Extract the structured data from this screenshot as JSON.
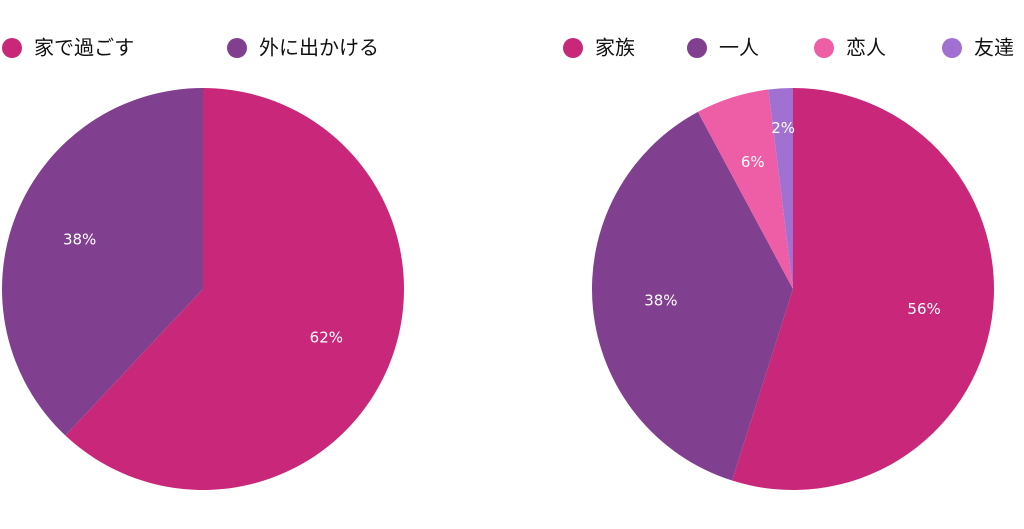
{
  "chart_data": [
    {
      "type": "pie",
      "categories": [
        "家で過ごす",
        "外に出かける"
      ],
      "values": [
        62,
        38
      ],
      "value_labels": [
        "62%",
        "38%"
      ],
      "colors": [
        "#c9287a",
        "#80408f"
      ]
    },
    {
      "type": "pie",
      "categories": [
        "家族",
        "一人",
        "恋人",
        "友達"
      ],
      "values": [
        56,
        38,
        6,
        2
      ],
      "value_labels": [
        "56%",
        "38%",
        "6%",
        "2%"
      ],
      "colors": [
        "#c9287a",
        "#80408f",
        "#ee5ea6",
        "#a171d1"
      ]
    }
  ]
}
